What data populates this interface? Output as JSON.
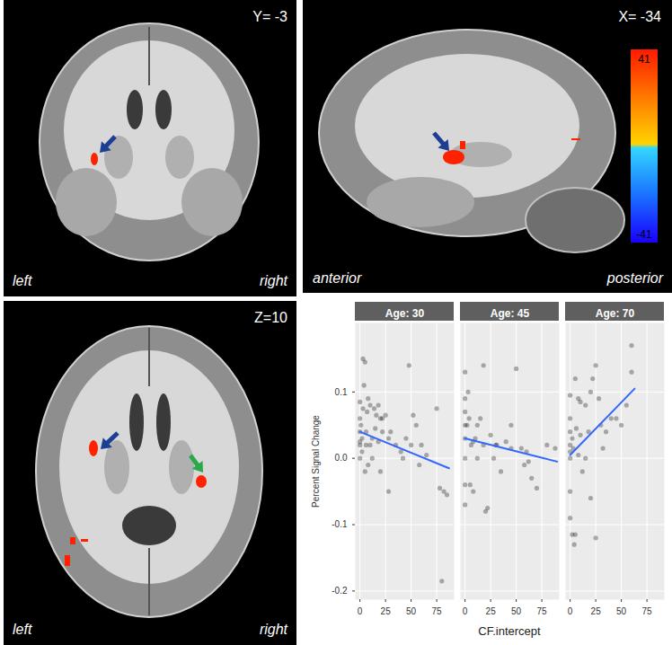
{
  "brain_panels": [
    {
      "coordinate": "Y= -3",
      "labels": [
        "left",
        "right"
      ]
    },
    {
      "coordinate": "X= -34",
      "labels": [
        "anterior",
        "posterior"
      ],
      "colorbar": {
        "range": [
          -41,
          41
        ],
        "ticks": [
          41,
          -41
        ]
      }
    },
    {
      "coordinate": "Z=10",
      "labels": [
        "left",
        "right"
      ]
    }
  ],
  "chart_data": {
    "type": "scatter",
    "xlabel": "CF.intercept",
    "ylabel": "Percent Signal Change",
    "xlim": [
      -4.5,
      92
    ],
    "xticks": [
      0,
      25,
      50,
      75
    ],
    "ylim": [
      -0.213,
      0.204
    ],
    "yticks": [
      -0.2,
      -0.1,
      {
        "value": 0,
        "label": "0.0"
      },
      0.1
    ],
    "grid": true,
    "panels": [
      {
        "title": "Age: 30",
        "series": [
          {
            "type": "scatter",
            "color": "#000000",
            "x": [
              0,
              0,
              0,
              0,
              0,
              1,
              2,
              3,
              5,
              4,
              3,
              6,
              7,
              8,
              10,
              12,
              14,
              15,
              16,
              18,
              20,
              22,
              25,
              28,
              30,
              10,
              8,
              5,
              12,
              20,
              28,
              35,
              40,
              42,
              45,
              48,
              52,
              50,
              55,
              58,
              60,
              65,
              75,
              78,
              82,
              85,
              80,
              18,
              22,
              2,
              0,
              6
            ],
            "values": [
              0.085,
              0.06,
              0.04,
              0.02,
              0.0,
              0.05,
              0.03,
              0.15,
              0.145,
              0.11,
              0.075,
              0.02,
              0.07,
              0.09,
              0.08,
              0.03,
              0.075,
              0.045,
              0.065,
              0.08,
              0.06,
              0.06,
              0.065,
              0.03,
              0.04,
              0.02,
              -0.01,
              -0.02,
              0.0,
              -0.02,
              -0.05,
              0.02,
              0.01,
              0.0,
              0.03,
              0.14,
              0.065,
              0.02,
              0.05,
              -0.01,
              0.02,
              0.005,
              0.075,
              -0.045,
              -0.05,
              -0.055,
              -0.185,
              0.025,
              0.04,
              0.01,
              0.025,
              0.04
            ]
          },
          {
            "type": "line",
            "color": "#3366ff",
            "x": [
              0,
              87
            ],
            "values": [
              0.04,
              -0.015
            ]
          }
        ]
      },
      {
        "title": "Age: 45",
        "series": [
          {
            "type": "scatter",
            "color": "#000000",
            "x": [
              0,
              0,
              0,
              0,
              0,
              0,
              0,
              0,
              2,
              3,
              4,
              5,
              6,
              8,
              10,
              12,
              15,
              18,
              20,
              22,
              25,
              28,
              30,
              31,
              35,
              40,
              45,
              45,
              50,
              55,
              58,
              60,
              62,
              65,
              70,
              80,
              88,
              12,
              18,
              8
            ],
            "values": [
              0.13,
              0.09,
              0.07,
              0.05,
              0.03,
              0.0,
              -0.04,
              -0.07,
              0.05,
              0.1,
              0.06,
              -0.04,
              0.02,
              0.025,
              0.03,
              0.05,
              0.06,
              0.14,
              -0.08,
              -0.075,
              0.035,
              0.0,
              0.02,
              0.02,
              -0.02,
              0.025,
              0.05,
              0.015,
              0.135,
              0.015,
              -0.01,
              0.01,
              -0.005,
              -0.03,
              -0.045,
              0.02,
              0.015,
              0.0,
              0.02,
              -0.05
            ]
          },
          {
            "type": "line",
            "color": "#3366ff",
            "x": [
              0,
              90
            ],
            "values": [
              0.03,
              -0.005
            ]
          }
        ]
      },
      {
        "title": "Age: 70",
        "series": [
          {
            "type": "scatter",
            "color": "#000000",
            "x": [
              0,
              0,
              0,
              0,
              0,
              0,
              0,
              0,
              2,
              5,
              4,
              2,
              3,
              5,
              8,
              10,
              10,
              12,
              15,
              15,
              18,
              20,
              20,
              22,
              25,
              25,
              28,
              30,
              32,
              40,
              45,
              50,
              55,
              60,
              60,
              35,
              8,
              6
            ],
            "values": [
              0.095,
              0.06,
              0.04,
              0.02,
              0.01,
              0.0,
              -0.05,
              -0.09,
              -0.115,
              -0.115,
              -0.13,
              0.03,
              0.015,
              0.12,
              0.09,
              0.085,
              0.035,
              -0.02,
              0.08,
              0.0,
              0.04,
              0.1,
              -0.06,
              0.12,
              0.14,
              -0.12,
              0.09,
              0.05,
              0.015,
              0.06,
              0.06,
              0.05,
              0.08,
              0.13,
              0.17,
              0.04,
              0.005,
              0.045
            ]
          },
          {
            "type": "line",
            "color": "#3366ff",
            "x": [
              0,
              63
            ],
            "values": [
              0.005,
              0.105
            ]
          }
        ]
      }
    ]
  }
}
